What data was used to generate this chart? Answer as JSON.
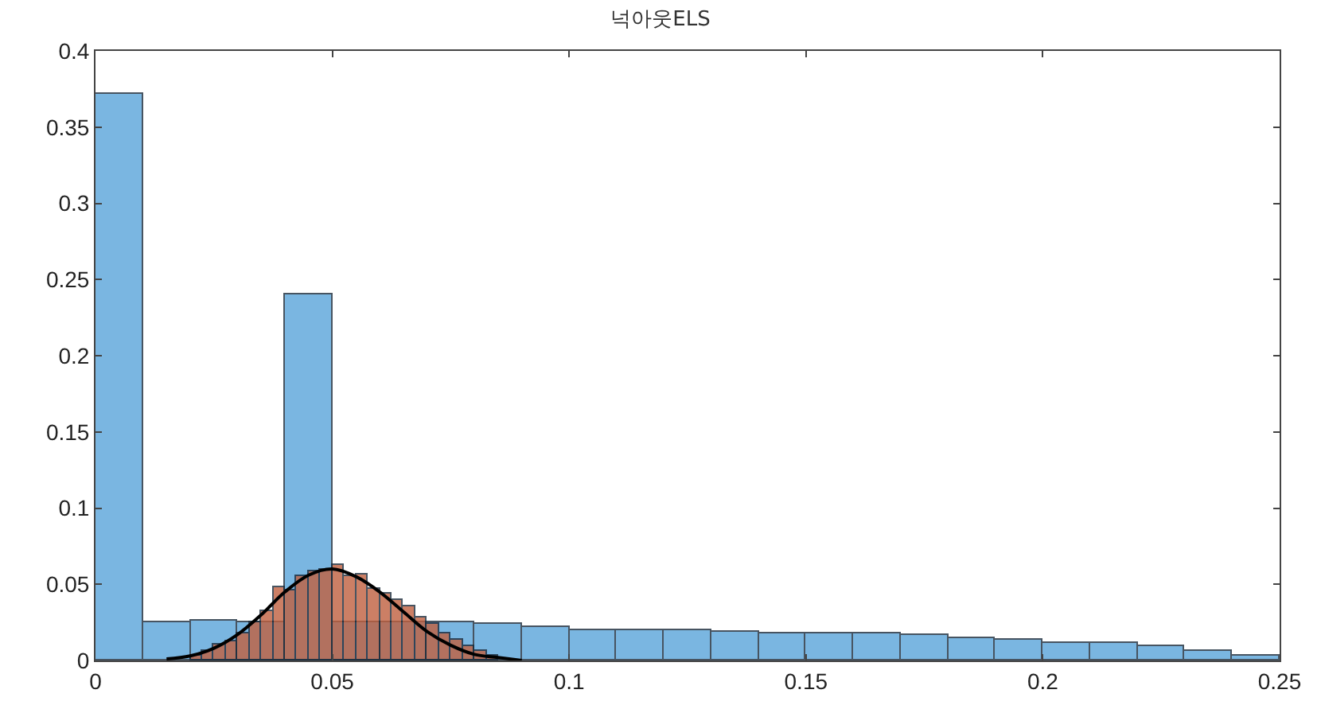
{
  "chart_data": {
    "type": "histogram",
    "title": "넉아웃ELS",
    "xlim": [
      0,
      0.25
    ],
    "ylim": [
      0,
      0.4
    ],
    "xticks": [
      0,
      0.05,
      0.1,
      0.15,
      0.2,
      0.25
    ],
    "yticks": [
      0,
      0.05,
      0.1,
      0.15,
      0.2,
      0.25,
      0.3,
      0.35,
      0.4
    ],
    "grid": false,
    "series": [
      {
        "color": "#5aa5da",
        "bins": [
          0,
          0.01,
          0.02,
          0.03,
          0.04,
          0.05,
          0.06,
          0.07,
          0.08,
          0.09,
          0.1,
          0.11,
          0.12,
          0.13,
          0.14,
          0.15,
          0.16,
          0.17,
          0.18,
          0.19,
          0.2,
          0.21,
          0.22,
          0.23,
          0.24,
          0.25
        ],
        "values": [
          0.372,
          0.025,
          0.026,
          0.025,
          0.24,
          0.025,
          0.025,
          0.025,
          0.024,
          0.022,
          0.02,
          0.02,
          0.02,
          0.019,
          0.018,
          0.018,
          0.018,
          0.017,
          0.015,
          0.014,
          0.012,
          0.012,
          0.009,
          0.006,
          0.003
        ]
      },
      {
        "color": "#c0603f",
        "bins": [
          0.02,
          0.0225,
          0.025,
          0.0275,
          0.03,
          0.0325,
          0.035,
          0.0375,
          0.04,
          0.0425,
          0.045,
          0.0475,
          0.05,
          0.0525,
          0.055,
          0.0575,
          0.06,
          0.0625,
          0.065,
          0.0675,
          0.07,
          0.0725,
          0.075,
          0.0775,
          0.08,
          0.0825,
          0.085
        ],
        "values": [
          0.003,
          0.006,
          0.01,
          0.013,
          0.018,
          0.025,
          0.032,
          0.048,
          0.046,
          0.055,
          0.058,
          0.06,
          0.063,
          0.055,
          0.056,
          0.047,
          0.044,
          0.04,
          0.036,
          0.028,
          0.024,
          0.018,
          0.014,
          0.009,
          0.006,
          0.003
        ]
      },
      {
        "type": "line",
        "color": "#000000",
        "x": [
          0.015,
          0.02,
          0.025,
          0.03,
          0.035,
          0.04,
          0.045,
          0.05,
          0.055,
          0.06,
          0.065,
          0.07,
          0.075,
          0.08,
          0.085,
          0.09
        ],
        "values": [
          0.001,
          0.003,
          0.008,
          0.017,
          0.03,
          0.045,
          0.056,
          0.06,
          0.055,
          0.045,
          0.032,
          0.019,
          0.01,
          0.004,
          0.002,
          0
        ]
      }
    ]
  }
}
